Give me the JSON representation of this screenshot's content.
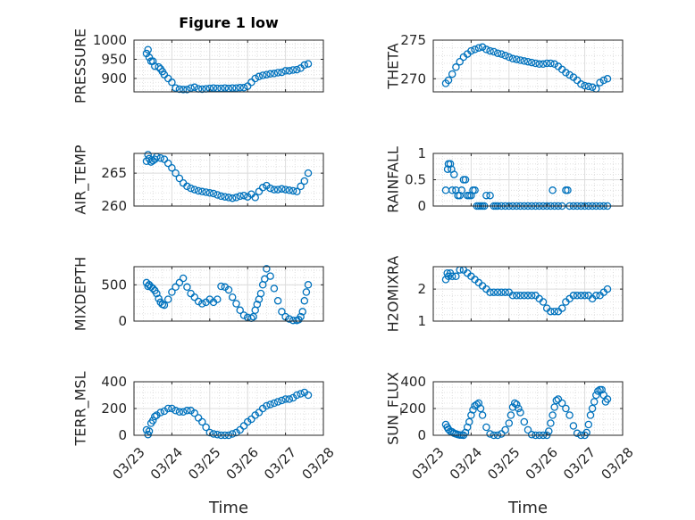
{
  "figure": {
    "title": "Figure 1 low",
    "marker_color": "#0072BD"
  },
  "chart_data": [
    {
      "type": "scatter",
      "ylabel": "PRESSURE",
      "title": "Figure 1 low",
      "xlabel": "",
      "xlim": [
        0,
        5
      ],
      "ylim": [
        865,
        1000
      ],
      "yticks": [
        900,
        950,
        1000
      ],
      "xticks": [
        0,
        1,
        2,
        3,
        4,
        5
      ],
      "xticklabels": [
        "03/23",
        "03/24",
        "03/25",
        "03/26",
        "03/27",
        "03/28"
      ],
      "show_xticklabels": false,
      "grid": true,
      "x": [
        0.33,
        0.37,
        0.4,
        0.45,
        0.5,
        0.55,
        0.65,
        0.7,
        0.75,
        0.8,
        0.9,
        1.0,
        1.1,
        1.2,
        1.3,
        1.4,
        1.5,
        1.6,
        1.7,
        1.8,
        1.9,
        2.0,
        2.1,
        2.2,
        2.3,
        2.4,
        2.5,
        2.6,
        2.7,
        2.8,
        2.9,
        3.0,
        3.1,
        3.2,
        3.3,
        3.4,
        3.5,
        3.6,
        3.7,
        3.8,
        3.9,
        4.0,
        4.1,
        4.2,
        4.3,
        4.4,
        4.5,
        4.6
      ],
      "y": [
        965,
        975,
        955,
        945,
        945,
        932,
        930,
        925,
        918,
        910,
        900,
        890,
        875,
        872,
        871,
        871,
        875,
        877,
        873,
        872,
        873,
        874,
        875,
        874,
        874,
        875,
        874,
        875,
        875,
        876,
        876,
        880,
        890,
        900,
        905,
        908,
        910,
        912,
        913,
        915,
        916,
        920,
        920,
        922,
        923,
        927,
        935,
        938
      ]
    },
    {
      "type": "scatter",
      "ylabel": "THETA",
      "title": "",
      "xlabel": "",
      "xlim": [
        0,
        5
      ],
      "ylim": [
        268.3,
        275
      ],
      "yticks": [
        270,
        275
      ],
      "xticks": [
        0,
        1,
        2,
        3,
        4,
        5
      ],
      "xticklabels": [
        "03/23",
        "03/24",
        "03/25",
        "03/26",
        "03/27",
        "03/28"
      ],
      "show_xticklabels": false,
      "grid": true,
      "x": [
        0.33,
        0.4,
        0.5,
        0.6,
        0.7,
        0.8,
        0.9,
        1.0,
        1.1,
        1.2,
        1.3,
        1.4,
        1.5,
        1.6,
        1.7,
        1.8,
        1.9,
        2.0,
        2.1,
        2.2,
        2.3,
        2.4,
        2.5,
        2.6,
        2.7,
        2.8,
        2.9,
        3.0,
        3.1,
        3.2,
        3.3,
        3.4,
        3.5,
        3.6,
        3.7,
        3.8,
        3.9,
        4.0,
        4.1,
        4.2,
        4.3,
        4.4,
        4.5,
        4.6
      ],
      "y": [
        269.4,
        269.8,
        270.6,
        271.5,
        272.2,
        272.8,
        273.2,
        273.6,
        273.8,
        274.0,
        274.1,
        273.8,
        273.6,
        273.5,
        273.3,
        273.2,
        273.0,
        272.8,
        272.6,
        272.5,
        272.4,
        272.3,
        272.2,
        272.1,
        272.0,
        271.9,
        271.9,
        272.0,
        272.0,
        271.9,
        271.6,
        271.2,
        270.8,
        270.5,
        270.2,
        269.8,
        269.3,
        269.1,
        269.0,
        268.9,
        268.7,
        269.5,
        269.8,
        270.0
      ]
    },
    {
      "type": "scatter",
      "ylabel": "AIR_TEMP",
      "title": "",
      "xlabel": "",
      "xlim": [
        0,
        5
      ],
      "ylim": [
        260,
        268
      ],
      "yticks": [
        260,
        265
      ],
      "xticks": [
        0,
        1,
        2,
        3,
        4,
        5
      ],
      "xticklabels": [
        "03/23",
        "03/24",
        "03/25",
        "03/26",
        "03/27",
        "03/28"
      ],
      "show_xticklabels": false,
      "grid": true,
      "x": [
        0.33,
        0.37,
        0.4,
        0.45,
        0.5,
        0.55,
        0.6,
        0.7,
        0.8,
        0.9,
        1.0,
        1.1,
        1.2,
        1.3,
        1.4,
        1.5,
        1.6,
        1.7,
        1.8,
        1.9,
        2.0,
        2.1,
        2.2,
        2.3,
        2.4,
        2.5,
        2.6,
        2.7,
        2.8,
        2.9,
        3.0,
        3.1,
        3.2,
        3.3,
        3.4,
        3.5,
        3.6,
        3.7,
        3.8,
        3.9,
        4.0,
        4.1,
        4.2,
        4.3,
        4.4,
        4.5,
        4.6
      ],
      "y": [
        266.8,
        267.8,
        267.2,
        266.7,
        266.9,
        267.1,
        267.5,
        267.3,
        267.1,
        266.5,
        265.8,
        265.0,
        264.2,
        263.5,
        263.0,
        262.7,
        262.5,
        262.3,
        262.2,
        262.1,
        262.0,
        261.9,
        261.7,
        261.5,
        261.4,
        261.3,
        261.2,
        261.3,
        261.5,
        261.6,
        261.4,
        261.8,
        261.3,
        262.2,
        262.8,
        263.1,
        262.7,
        262.5,
        262.5,
        262.6,
        262.5,
        262.4,
        262.3,
        262.2,
        263.0,
        263.8,
        265.0
      ]
    },
    {
      "type": "scatter",
      "ylabel": "RAINFALL",
      "title": "",
      "xlabel": "",
      "xlim": [
        0,
        5
      ],
      "ylim": [
        0,
        1
      ],
      "yticks": [
        0,
        0.5,
        1
      ],
      "xticks": [
        0,
        1,
        2,
        3,
        4,
        5
      ],
      "xticklabels": [
        "03/23",
        "03/24",
        "03/25",
        "03/26",
        "03/27",
        "03/28"
      ],
      "show_xticklabels": false,
      "grid": true,
      "x": [
        0.33,
        0.38,
        0.4,
        0.45,
        0.48,
        0.5,
        0.55,
        0.6,
        0.65,
        0.7,
        0.75,
        0.8,
        0.85,
        0.9,
        0.95,
        1.0,
        1.05,
        1.1,
        1.15,
        1.2,
        1.25,
        1.3,
        1.35,
        1.4,
        1.5,
        1.6,
        1.65,
        1.7,
        1.8,
        1.9,
        2.0,
        2.1,
        2.2,
        2.3,
        2.4,
        2.5,
        2.6,
        2.7,
        2.8,
        2.9,
        3.0,
        3.1,
        3.15,
        3.2,
        3.3,
        3.4,
        3.5,
        3.55,
        3.6,
        3.7,
        3.8,
        3.9,
        4.0,
        4.1,
        4.2,
        4.3,
        4.4,
        4.5,
        4.6
      ],
      "y": [
        0.3,
        0.7,
        0.8,
        0.8,
        0.7,
        0.3,
        0.6,
        0.3,
        0.2,
        0.2,
        0.3,
        0.5,
        0.5,
        0.2,
        0.2,
        0.2,
        0.3,
        0.3,
        0.0,
        0.0,
        0.0,
        0.0,
        0.0,
        0.2,
        0.2,
        0.0,
        0.0,
        0.0,
        0.0,
        0.0,
        0.0,
        0.0,
        0.0,
        0.0,
        0.0,
        0.0,
        0.0,
        0.0,
        0.0,
        0.0,
        0.0,
        0.0,
        0.3,
        0.0,
        0.0,
        0.0,
        0.3,
        0.3,
        0.0,
        0.0,
        0.0,
        0.0,
        0.0,
        0.0,
        0.0,
        0.0,
        0.0,
        0.0,
        0.0
      ]
    },
    {
      "type": "scatter",
      "ylabel": "MIXDEPTH",
      "title": "",
      "xlabel": "",
      "xlim": [
        0,
        5
      ],
      "ylim": [
        0,
        750
      ],
      "yticks": [
        0,
        500
      ],
      "xticks": [
        0,
        1,
        2,
        3,
        4,
        5
      ],
      "xticklabels": [
        "03/23",
        "03/24",
        "03/25",
        "03/26",
        "03/27",
        "03/28"
      ],
      "show_xticklabels": false,
      "grid": true,
      "x": [
        0.33,
        0.37,
        0.4,
        0.45,
        0.5,
        0.55,
        0.6,
        0.65,
        0.7,
        0.75,
        0.8,
        0.9,
        1.0,
        1.1,
        1.2,
        1.3,
        1.4,
        1.5,
        1.6,
        1.7,
        1.8,
        1.9,
        2.0,
        2.1,
        2.2,
        2.3,
        2.4,
        2.5,
        2.6,
        2.7,
        2.8,
        2.9,
        3.0,
        3.1,
        3.15,
        3.2,
        3.25,
        3.3,
        3.35,
        3.4,
        3.45,
        3.5,
        3.6,
        3.7,
        3.8,
        3.9,
        4.0,
        4.1,
        4.2,
        4.3,
        4.35,
        4.4,
        4.45,
        4.5,
        4.55,
        4.6
      ],
      "y": [
        530,
        480,
        500,
        470,
        450,
        420,
        380,
        310,
        260,
        230,
        220,
        300,
        400,
        470,
        530,
        590,
        470,
        380,
        330,
        270,
        240,
        260,
        300,
        260,
        300,
        480,
        470,
        430,
        330,
        240,
        150,
        80,
        50,
        40,
        60,
        150,
        230,
        300,
        380,
        500,
        580,
        720,
        620,
        450,
        280,
        130,
        60,
        30,
        10,
        10,
        20,
        60,
        130,
        280,
        400,
        500
      ]
    },
    {
      "type": "scatter",
      "ylabel": "H2OMIXRA",
      "title": "",
      "xlabel": "",
      "xlim": [
        0,
        5
      ],
      "ylim": [
        1,
        2.7
      ],
      "yticks": [
        1,
        2
      ],
      "xticks": [
        0,
        1,
        2,
        3,
        4,
        5
      ],
      "xticklabels": [
        "03/23",
        "03/24",
        "03/25",
        "03/26",
        "03/27",
        "03/28"
      ],
      "show_xticklabels": false,
      "grid": true,
      "x": [
        0.33,
        0.37,
        0.4,
        0.45,
        0.5,
        0.6,
        0.7,
        0.8,
        0.9,
        1.0,
        1.1,
        1.2,
        1.3,
        1.4,
        1.5,
        1.6,
        1.7,
        1.8,
        1.9,
        2.0,
        2.1,
        2.2,
        2.3,
        2.4,
        2.5,
        2.6,
        2.7,
        2.8,
        2.9,
        3.0,
        3.1,
        3.2,
        3.3,
        3.4,
        3.5,
        3.6,
        3.7,
        3.8,
        3.9,
        4.0,
        4.1,
        4.2,
        4.3,
        4.4,
        4.5,
        4.6
      ],
      "y": [
        2.3,
        2.5,
        2.4,
        2.5,
        2.4,
        2.4,
        2.6,
        2.6,
        2.5,
        2.4,
        2.3,
        2.2,
        2.1,
        2.0,
        1.9,
        1.9,
        1.9,
        1.9,
        1.9,
        1.9,
        1.8,
        1.8,
        1.8,
        1.8,
        1.8,
        1.8,
        1.8,
        1.7,
        1.6,
        1.4,
        1.3,
        1.3,
        1.3,
        1.4,
        1.6,
        1.7,
        1.8,
        1.8,
        1.8,
        1.8,
        1.8,
        1.7,
        1.8,
        1.8,
        1.9,
        2.0
      ]
    },
    {
      "type": "scatter",
      "ylabel": "TERR_MSL",
      "title": "",
      "xlabel": "Time",
      "xlim": [
        0,
        5
      ],
      "ylim": [
        0,
        400
      ],
      "yticks": [
        0,
        200,
        400
      ],
      "xticks": [
        0,
        1,
        2,
        3,
        4,
        5
      ],
      "xticklabels": [
        "03/23",
        "03/24",
        "03/25",
        "03/26",
        "03/27",
        "03/28"
      ],
      "show_xticklabels": true,
      "grid": true,
      "x": [
        0.33,
        0.37,
        0.4,
        0.45,
        0.5,
        0.55,
        0.6,
        0.7,
        0.8,
        0.9,
        1.0,
        1.1,
        1.2,
        1.3,
        1.4,
        1.5,
        1.6,
        1.7,
        1.8,
        1.9,
        2.0,
        2.1,
        2.2,
        2.3,
        2.4,
        2.5,
        2.6,
        2.7,
        2.8,
        2.9,
        3.0,
        3.1,
        3.2,
        3.3,
        3.4,
        3.5,
        3.6,
        3.7,
        3.8,
        3.9,
        4.0,
        4.1,
        4.2,
        4.3,
        4.4,
        4.5,
        4.6
      ],
      "y": [
        40,
        5,
        30,
        90,
        110,
        140,
        150,
        170,
        180,
        200,
        200,
        185,
        175,
        175,
        185,
        185,
        165,
        130,
        100,
        60,
        20,
        10,
        5,
        0,
        0,
        0,
        10,
        20,
        40,
        70,
        100,
        120,
        150,
        170,
        200,
        220,
        230,
        240,
        250,
        260,
        270,
        270,
        280,
        300,
        310,
        320,
        300
      ]
    },
    {
      "type": "scatter",
      "ylabel": "SUN_FLUX",
      "title": "",
      "xlabel": "Time",
      "xlim": [
        0,
        5
      ],
      "ylim": [
        0,
        400
      ],
      "yticks": [
        0,
        200,
        400
      ],
      "xticks": [
        0,
        1,
        2,
        3,
        4,
        5
      ],
      "xticklabels": [
        "03/23",
        "03/24",
        "03/25",
        "03/26",
        "03/27",
        "03/28"
      ],
      "show_xticklabels": true,
      "grid": true,
      "x": [
        0.33,
        0.37,
        0.4,
        0.45,
        0.5,
        0.55,
        0.6,
        0.65,
        0.7,
        0.75,
        0.8,
        0.85,
        0.9,
        0.95,
        1.0,
        1.05,
        1.1,
        1.15,
        1.2,
        1.25,
        1.3,
        1.4,
        1.5,
        1.6,
        1.7,
        1.8,
        1.9,
        2.0,
        2.05,
        2.1,
        2.15,
        2.2,
        2.25,
        2.3,
        2.4,
        2.5,
        2.6,
        2.7,
        2.8,
        2.9,
        3.0,
        3.05,
        3.1,
        3.15,
        3.2,
        3.25,
        3.3,
        3.4,
        3.5,
        3.6,
        3.7,
        3.8,
        3.9,
        4.0,
        4.05,
        4.1,
        4.15,
        4.2,
        4.25,
        4.3,
        4.35,
        4.4,
        4.45,
        4.5,
        4.55,
        4.6
      ],
      "y": [
        80,
        60,
        45,
        30,
        25,
        15,
        10,
        5,
        2,
        2,
        0,
        20,
        60,
        100,
        150,
        190,
        220,
        230,
        240,
        200,
        150,
        60,
        10,
        0,
        0,
        10,
        40,
        90,
        150,
        210,
        240,
        230,
        200,
        170,
        100,
        40,
        5,
        0,
        0,
        0,
        0,
        30,
        90,
        150,
        210,
        260,
        270,
        240,
        200,
        150,
        70,
        15,
        0,
        0,
        20,
        80,
        150,
        200,
        250,
        300,
        330,
        340,
        340,
        300,
        250,
        270
      ]
    }
  ]
}
